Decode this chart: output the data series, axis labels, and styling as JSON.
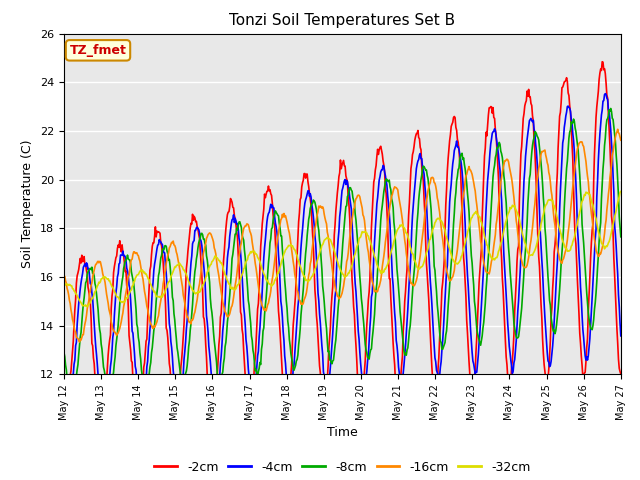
{
  "title": "Tonzi Soil Temperatures Set B",
  "xlabel": "Time",
  "ylabel": "Soil Temperature (C)",
  "ylim": [
    12,
    26
  ],
  "xlim": [
    0,
    360
  ],
  "annotation": "TZ_fmet",
  "annotation_color": "#cc0000",
  "annotation_bg": "#ffffdd",
  "annotation_border": "#cc8800",
  "plot_bg": "#e8e8e8",
  "tick_labels": [
    "May 12",
    "May 13",
    "May 14",
    "May 15",
    "May 16",
    "May 17",
    "May 18",
    "May 19",
    "May 20",
    "May 21",
    "May 22",
    "May 23",
    "May 24",
    "May 25",
    "May 26",
    "May 27"
  ],
  "legend_labels": [
    "-2cm",
    "-4cm",
    "-8cm",
    "-16cm",
    "-32cm"
  ],
  "line_colors": [
    "#ff0000",
    "#0000ff",
    "#00aa00",
    "#ff8800",
    "#dddd00"
  ],
  "line_widths": [
    1.2,
    1.2,
    1.2,
    1.2,
    1.2
  ]
}
